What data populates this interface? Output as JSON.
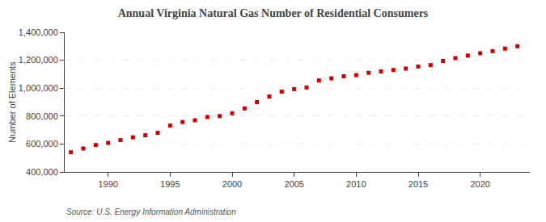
{
  "chart_data": {
    "type": "scatter",
    "title": "Annual Virginia Natural Gas Number of Residential Consumers",
    "ylabel": "Number of Elements",
    "annotations": [
      "Source: U.S. Energy Information Administration"
    ],
    "x": [
      1987,
      1988,
      1989,
      1990,
      1991,
      1992,
      1993,
      1994,
      1995,
      1996,
      1997,
      1998,
      1999,
      2000,
      2001,
      2002,
      2003,
      2004,
      2005,
      2006,
      2007,
      2008,
      2009,
      2010,
      2011,
      2012,
      2013,
      2014,
      2015,
      2016,
      2017,
      2018,
      2019,
      2020,
      2021,
      2022,
      2023
    ],
    "values": [
      541000,
      568000,
      593000,
      608000,
      628000,
      648000,
      663000,
      680000,
      732000,
      757000,
      770000,
      793000,
      800000,
      820000,
      855000,
      900000,
      940000,
      975000,
      993000,
      1005000,
      1055000,
      1070000,
      1085000,
      1093000,
      1110000,
      1120000,
      1130000,
      1140000,
      1155000,
      1165000,
      1195000,
      1215000,
      1233000,
      1250000,
      1265000,
      1283000,
      1300000
    ],
    "color": "#cc0000",
    "marker": "square",
    "grid": true,
    "xlim": [
      1986.5,
      2024
    ],
    "xticks": [
      1990,
      1995,
      2000,
      2005,
      2010,
      2015,
      2020
    ],
    "ylim": [
      400000,
      1400000
    ],
    "yticks": [
      {
        "value": 400000,
        "label": "400,000"
      },
      {
        "value": 600000,
        "label": "600,000"
      },
      {
        "value": 800000,
        "label": "800,000"
      },
      {
        "value": 1000000,
        "label": "1,000,000"
      },
      {
        "value": 1200000,
        "label": "1,200,000"
      },
      {
        "value": 1400000,
        "label": "1,400,000"
      }
    ]
  }
}
